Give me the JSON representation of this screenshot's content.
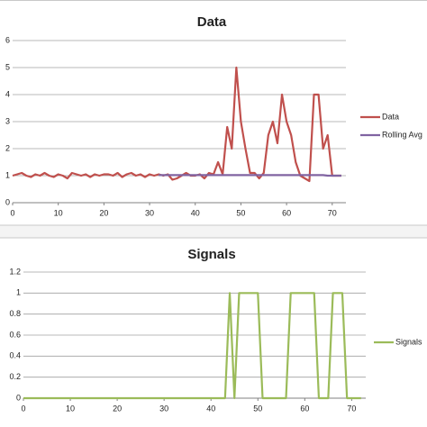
{
  "chart_data": [
    {
      "type": "line",
      "title": "Data",
      "x": [
        0,
        1,
        2,
        3,
        4,
        5,
        6,
        7,
        8,
        9,
        10,
        11,
        12,
        13,
        14,
        15,
        16,
        17,
        18,
        19,
        20,
        21,
        22,
        23,
        24,
        25,
        26,
        27,
        28,
        29,
        30,
        31,
        32,
        33,
        34,
        35,
        36,
        37,
        38,
        39,
        40,
        41,
        42,
        43,
        44,
        45,
        46,
        47,
        48,
        49,
        50,
        51,
        52,
        53,
        54,
        55,
        56,
        57,
        58,
        59,
        60,
        61,
        62,
        63,
        64,
        65,
        66,
        67,
        68,
        69,
        70,
        71,
        72
      ],
      "series": [
        {
          "name": "Data",
          "color": "#c0504d",
          "values": [
            1,
            1.05,
            1.1,
            1,
            0.95,
            1.05,
            1,
            1.1,
            1,
            0.95,
            1.05,
            1,
            0.9,
            1.1,
            1.05,
            1,
            1.05,
            0.95,
            1.05,
            1,
            1.05,
            1.05,
            1,
            1.1,
            0.95,
            1.05,
            1.1,
            1,
            1.05,
            0.95,
            1.05,
            1,
            1.05,
            1,
            1.05,
            0.85,
            0.9,
            1,
            1.1,
            1,
            1,
            1.05,
            0.9,
            1.1,
            1.05,
            1.5,
            1.05,
            2.8,
            2,
            5,
            3,
            2,
            1.1,
            1.1,
            0.9,
            1.1,
            2.5,
            3,
            2.2,
            4,
            3,
            2.5,
            1.5,
            1,
            0.9,
            0.8,
            4,
            4,
            2,
            2.5,
            1,
            1,
            1
          ]
        },
        {
          "name": "Rolling Avg",
          "color": "#8064a2",
          "values": [
            null,
            null,
            null,
            null,
            null,
            null,
            null,
            null,
            null,
            null,
            null,
            null,
            null,
            null,
            null,
            null,
            null,
            null,
            null,
            null,
            null,
            null,
            null,
            null,
            null,
            null,
            null,
            null,
            null,
            null,
            null,
            null,
            1.02,
            1.02,
            1.02,
            1.02,
            1.02,
            1.02,
            1.02,
            1.02,
            1.02,
            1.02,
            1.02,
            1.02,
            1.02,
            1.02,
            1.02,
            1.02,
            1.02,
            1.02,
            1.02,
            1.02,
            1.02,
            1.02,
            1.02,
            1.02,
            1.02,
            1.02,
            1.02,
            1.02,
            1.02,
            1.02,
            1.02,
            1.02,
            1.02,
            1.02,
            1.02,
            1.02,
            1.02,
            1.0,
            1.0,
            1.0,
            1.0
          ]
        }
      ],
      "xlim": [
        0,
        73
      ],
      "xticks": [
        0,
        10,
        20,
        30,
        40,
        50,
        60,
        70
      ],
      "ylim": [
        0,
        6
      ],
      "yticks": [
        0,
        1,
        2,
        3,
        4,
        5,
        6
      ],
      "grid": true,
      "legend": "right"
    },
    {
      "type": "line",
      "title": "Signals",
      "x": [
        0,
        1,
        2,
        3,
        4,
        5,
        6,
        7,
        8,
        9,
        10,
        11,
        12,
        13,
        14,
        15,
        16,
        17,
        18,
        19,
        20,
        21,
        22,
        23,
        24,
        25,
        26,
        27,
        28,
        29,
        30,
        31,
        32,
        33,
        34,
        35,
        36,
        37,
        38,
        39,
        40,
        41,
        42,
        43,
        44,
        45,
        46,
        47,
        48,
        49,
        50,
        51,
        52,
        53,
        54,
        55,
        56,
        57,
        58,
        59,
        60,
        61,
        62,
        63,
        64,
        65,
        66,
        67,
        68,
        69,
        70,
        71,
        72
      ],
      "series": [
        {
          "name": "Signals",
          "color": "#9bbb59",
          "values": [
            0,
            0,
            0,
            0,
            0,
            0,
            0,
            0,
            0,
            0,
            0,
            0,
            0,
            0,
            0,
            0,
            0,
            0,
            0,
            0,
            0,
            0,
            0,
            0,
            0,
            0,
            0,
            0,
            0,
            0,
            0,
            0,
            0,
            0,
            0,
            0,
            0,
            0,
            0,
            0,
            0,
            0,
            0,
            0,
            1,
            0,
            1,
            1,
            1,
            1,
            1,
            0,
            0,
            0,
            0,
            0,
            0,
            1,
            1,
            1,
            1,
            1,
            1,
            0,
            0,
            0,
            1,
            1,
            1,
            0,
            0,
            0,
            0
          ]
        }
      ],
      "xlim": [
        0,
        73
      ],
      "xticks": [
        0,
        10,
        20,
        30,
        40,
        50,
        60,
        70
      ],
      "ylim": [
        0,
        1.2
      ],
      "yticks": [
        0,
        0.2,
        0.4,
        0.6,
        0.8,
        1,
        1.2
      ],
      "grid": true,
      "legend": "right"
    }
  ]
}
